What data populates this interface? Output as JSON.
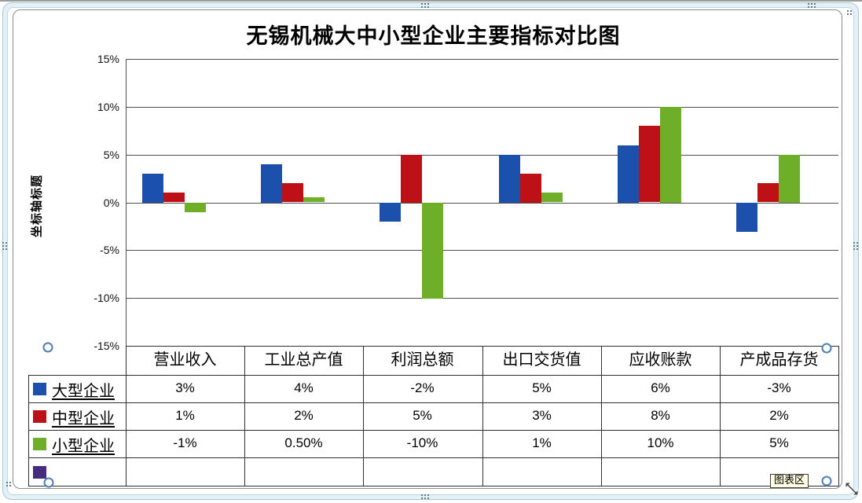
{
  "window": {
    "tooltip_label": "图表区"
  },
  "chart": {
    "title": "无锡机械大中小型企业主要指标对比图",
    "y_axis_title": "坐标轴标题",
    "y_tick_labels": [
      "15%",
      "10%",
      "5%",
      "0%",
      "-5%",
      "-10%",
      "-15%"
    ]
  },
  "chart_data": {
    "type": "bar",
    "title": "无锡机械大中小型企业主要指标对比图",
    "ylabel": "坐标轴标题",
    "ylim": [
      -15,
      15
    ],
    "y_tick_step": 5,
    "unit": "percent",
    "grid": true,
    "legend_position": "data-table-left",
    "categories": [
      "营业收入",
      "工业总产值",
      "利润总额",
      "出口交货值",
      "应收账款",
      "产成品存货"
    ],
    "series": [
      {
        "name": "大型企业",
        "color": "#1b51ad",
        "values": [
          3,
          4,
          -2,
          5,
          6,
          -3
        ],
        "labels": [
          "3%",
          "4%",
          "-2%",
          "5%",
          "6%",
          "-3%"
        ]
      },
      {
        "name": "中型企业",
        "color": "#be1117",
        "values": [
          1,
          2,
          5,
          3,
          8,
          2
        ],
        "labels": [
          "1%",
          "2%",
          "5%",
          "3%",
          "8%",
          "2%"
        ]
      },
      {
        "name": "小型企业",
        "color": "#6fae28",
        "values": [
          -1,
          0.5,
          -10,
          1,
          10,
          5
        ],
        "labels": [
          "-1%",
          "0.50%",
          "-10%",
          "1%",
          "10%",
          "5%"
        ]
      },
      {
        "name": "",
        "color": "#462c7e",
        "values": [],
        "labels": [
          "",
          "",
          "",
          "",
          "",
          ""
        ]
      }
    ]
  },
  "colors": {
    "selection_frame_fill": "#e3f0f6",
    "selection_frame_line": "#a9c9d9",
    "tooltip_background": "#ffffe1",
    "gridline": "#4f4f4f"
  }
}
